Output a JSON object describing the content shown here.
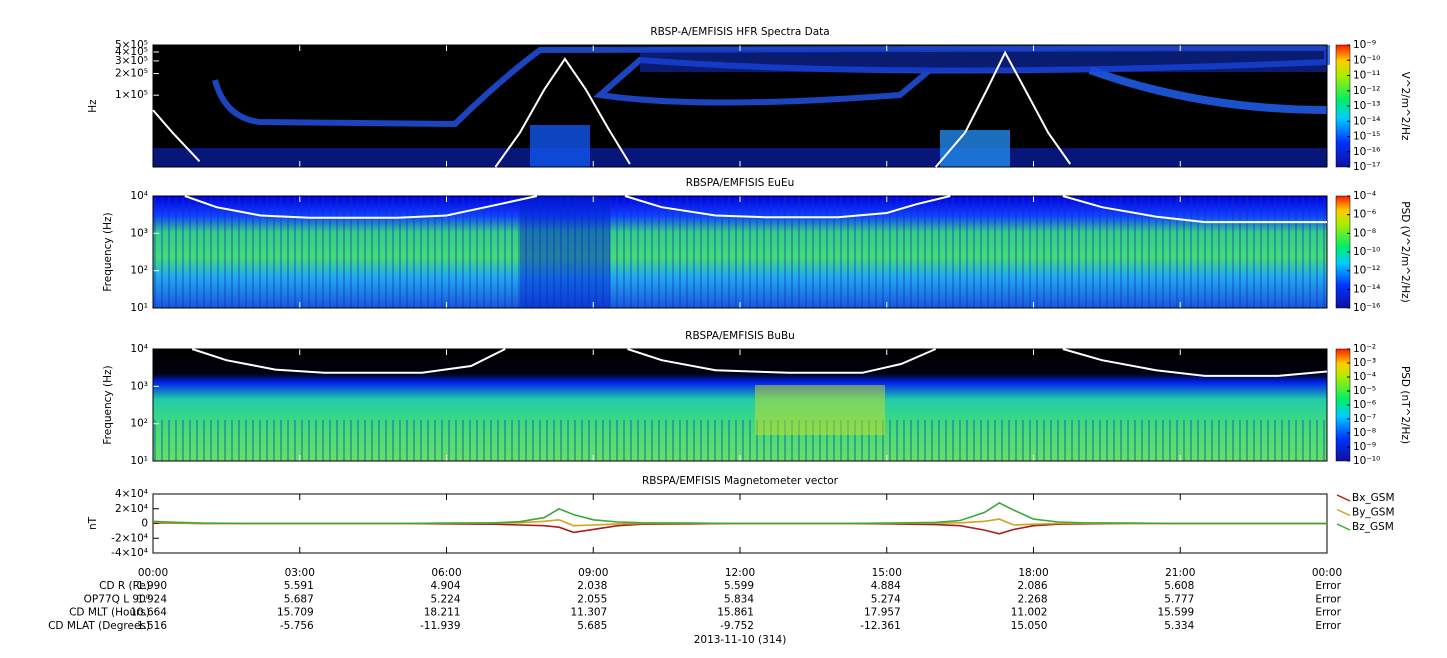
{
  "chart_data": [
    {
      "type": "spectrogram",
      "title": "RBSP-A/EMFISIS  HFR Spectra Data",
      "y_label": "Hz",
      "log_y": true,
      "xlim": [
        0,
        24
      ],
      "xticks": [
        0,
        3,
        6,
        9,
        12,
        15,
        18,
        21,
        24
      ],
      "ylim": [
        10000,
        500000
      ],
      "yticks": [
        {
          "value": 500000,
          "label": "5×10⁵"
        },
        {
          "value": 400000,
          "label": "4×10⁵"
        },
        {
          "value": 300000,
          "label": "3×10⁵"
        },
        {
          "value": 200000,
          "label": "2×10⁵"
        },
        {
          "value": 100000,
          "label": "1×10⁵"
        }
      ],
      "z_label": "V^2/m^2/Hz",
      "zlim": [
        1e-17,
        1e-09
      ],
      "zticks": [
        {
          "value": 1e-09,
          "label": "10⁻⁹"
        },
        {
          "value": 1e-10,
          "label": "10⁻¹⁰"
        },
        {
          "value": 1e-11,
          "label": "10⁻¹¹"
        },
        {
          "value": 1e-12,
          "label": "10⁻¹²"
        },
        {
          "value": 1e-13,
          "label": "10⁻¹³"
        },
        {
          "value": 1e-14,
          "label": "10⁻¹⁴"
        },
        {
          "value": 1e-15,
          "label": "10⁻¹⁵"
        },
        {
          "value": 1e-16,
          "label": "10⁻¹⁶"
        },
        {
          "value": 1e-17,
          "label": "10⁻¹⁷"
        }
      ],
      "overlay": {
        "color": "#ffffff",
        "x": [
          0,
          0.4,
          0.95,
          3,
          7.0,
          7.5,
          8.0,
          8.42,
          8.85,
          9.3,
          9.75,
          12,
          16.0,
          16.6,
          17.05,
          17.42,
          17.8,
          18.3,
          18.75
        ],
        "values": [
          62000,
          30000,
          12000,
          null,
          10000,
          30000,
          120000,
          320000,
          120000,
          35000,
          11000,
          null,
          10000,
          30000,
          120000,
          390000,
          130000,
          30000,
          11000
        ]
      }
    },
    {
      "type": "spectrogram",
      "title": "RBSPA/EMFISIS  EuEu",
      "y_label": "Frequency (Hz)",
      "log_y": true,
      "xlim": [
        0,
        24
      ],
      "xticks": [
        0,
        3,
        6,
        9,
        12,
        15,
        18,
        21,
        24
      ],
      "ylim": [
        10,
        10000
      ],
      "yticks": [
        {
          "value": 10000,
          "label": "10⁴"
        },
        {
          "value": 1000,
          "label": "10³"
        },
        {
          "value": 100,
          "label": "10²"
        },
        {
          "value": 10,
          "label": "10¹"
        }
      ],
      "z_label": "PSD (V^2/m^2/Hz)",
      "zlim": [
        1e-16,
        0.0001
      ],
      "zticks": [
        {
          "value": 0.0001,
          "label": "10⁻⁴"
        },
        {
          "value": 1e-06,
          "label": "10⁻⁶"
        },
        {
          "value": 1e-08,
          "label": "10⁻⁸"
        },
        {
          "value": 1e-10,
          "label": "10⁻¹⁰"
        },
        {
          "value": 1e-12,
          "label": "10⁻¹²"
        },
        {
          "value": 1e-14,
          "label": "10⁻¹⁴"
        },
        {
          "value": 1e-16,
          "label": "10⁻¹⁶"
        }
      ],
      "overlay": {
        "color": "#ffffff",
        "x": [
          0.65,
          1.3,
          2.2,
          3.2,
          5,
          6.0,
          6.8,
          7.85,
          8.5,
          9.65,
          10.4,
          11.5,
          12.5,
          14,
          15,
          15.6,
          16.3,
          17.5,
          18.6,
          19.4,
          20.5,
          21.5,
          24
        ],
        "values": [
          10000,
          5000,
          3000,
          2600,
          2600,
          3000,
          5000,
          10000,
          null,
          10000,
          5000,
          3000,
          2700,
          2700,
          3500,
          6000,
          10000,
          null,
          10000,
          5000,
          2800,
          2000,
          2000
        ]
      }
    },
    {
      "type": "spectrogram",
      "title": "RBSPA/EMFISIS  BuBu",
      "y_label": "Frequency (Hz)",
      "log_y": true,
      "xlim": [
        0,
        24
      ],
      "xticks": [
        0,
        3,
        6,
        9,
        12,
        15,
        18,
        21,
        24
      ],
      "ylim": [
        10,
        10000
      ],
      "yticks": [
        {
          "value": 10000,
          "label": "10⁴"
        },
        {
          "value": 1000,
          "label": "10³"
        },
        {
          "value": 100,
          "label": "10²"
        },
        {
          "value": 10,
          "label": "10¹"
        }
      ],
      "z_label": "PSD (nT^2/Hz)",
      "zlim": [
        1e-10,
        0.01
      ],
      "zticks": [
        {
          "value": 0.01,
          "label": "10⁻²"
        },
        {
          "value": 0.001,
          "label": "10⁻³"
        },
        {
          "value": 0.0001,
          "label": "10⁻⁴"
        },
        {
          "value": 1e-05,
          "label": "10⁻⁵"
        },
        {
          "value": 1e-06,
          "label": "10⁻⁶"
        },
        {
          "value": 1e-07,
          "label": "10⁻⁷"
        },
        {
          "value": 1e-08,
          "label": "10⁻⁸"
        },
        {
          "value": 1e-09,
          "label": "10⁻⁹"
        },
        {
          "value": 1e-10,
          "label": "10⁻¹⁰"
        }
      ],
      "overlay": {
        "color": "#ffffff",
        "x": [
          0.8,
          1.5,
          2.5,
          3.5,
          5.5,
          6.5,
          7.2,
          8,
          9.7,
          10.4,
          11.5,
          13,
          14.5,
          15.3,
          16.0,
          17,
          18.6,
          19.4,
          20.5,
          21.5,
          23,
          24
        ],
        "values": [
          10000,
          5000,
          2800,
          2300,
          2300,
          3500,
          10000,
          null,
          10000,
          5000,
          2700,
          2300,
          2300,
          4000,
          10000,
          null,
          10000,
          5000,
          2700,
          1900,
          1900,
          2500
        ]
      }
    },
    {
      "type": "line",
      "title": "RBSPA/EMFISIS  Magnetometer vector",
      "y_label": "nT",
      "x_label": "2013-11-10 (314)",
      "xlim": [
        0,
        24
      ],
      "xticks": [
        {
          "value": 0,
          "label": "00:00"
        },
        {
          "value": 3,
          "label": "03:00"
        },
        {
          "value": 6,
          "label": "06:00"
        },
        {
          "value": 9,
          "label": "09:00"
        },
        {
          "value": 12,
          "label": "12:00"
        },
        {
          "value": 15,
          "label": "15:00"
        },
        {
          "value": 18,
          "label": "18:00"
        },
        {
          "value": 21,
          "label": "21:00"
        },
        {
          "value": 24,
          "label": "00:00"
        }
      ],
      "ylim": [
        -40000,
        40000
      ],
      "yticks": [
        {
          "value": 40000,
          "label": "4×10⁴"
        },
        {
          "value": 20000,
          "label": "2×10⁴"
        },
        0,
        {
          "value": -20000,
          "label": "-2×10⁴"
        },
        {
          "value": -40000,
          "label": "-4×10⁴"
        }
      ],
      "x": [
        0,
        0.3,
        1,
        2,
        3,
        4,
        5,
        6,
        7,
        7.5,
        8,
        8.3,
        8.6,
        9,
        9.5,
        10,
        11,
        12,
        13,
        14,
        15,
        16,
        16.5,
        17,
        17.3,
        17.6,
        18,
        18.5,
        19,
        20,
        21,
        22,
        23,
        24
      ],
      "series": [
        {
          "name": "Bx_GSM",
          "color": "#a52020",
          "values": [
            1000,
            500,
            0,
            0,
            0,
            0,
            0,
            -500,
            -1000,
            -2000,
            -3000,
            -5000,
            -12000,
            -8000,
            -3000,
            -1000,
            -500,
            0,
            0,
            0,
            -500,
            -1500,
            -3000,
            -9000,
            -14000,
            -8000,
            -3000,
            -1000,
            -500,
            0,
            0,
            0,
            0,
            0
          ]
        },
        {
          "name": "By_GSM",
          "color": "#d4a020",
          "values": [
            2000,
            1000,
            0,
            0,
            0,
            0,
            0,
            0,
            500,
            1000,
            3000,
            5000,
            -3000,
            -2000,
            -500,
            0,
            0,
            0,
            0,
            0,
            0,
            500,
            1000,
            3000,
            6000,
            -2000,
            -1000,
            0,
            0,
            0,
            0,
            0,
            0,
            0
          ]
        },
        {
          "name": "Bz_GSM",
          "color": "#3aa83a",
          "values": [
            3000,
            2000,
            500,
            0,
            0,
            0,
            0,
            500,
            1000,
            2500,
            8000,
            20000,
            12000,
            5000,
            2000,
            1000,
            500,
            0,
            0,
            0,
            500,
            1500,
            4000,
            15000,
            28000,
            18000,
            6000,
            2000,
            1000,
            500,
            0,
            0,
            0,
            0
          ]
        }
      ]
    }
  ],
  "ephemeris": {
    "rows": [
      {
        "label": "CD R (Re)",
        "values": [
          "1.990",
          "5.591",
          "4.904",
          "2.038",
          "5.599",
          "4.884",
          "2.086",
          "5.608",
          "Error"
        ]
      },
      {
        "label": "OP77Q L 90⁰",
        "values": [
          "1.924",
          "5.687",
          "5.224",
          "2.055",
          "5.834",
          "5.274",
          "2.268",
          "5.777",
          "Error"
        ]
      },
      {
        "label": "CD MLT (Hours)",
        "values": [
          "10.664",
          "15.709",
          "18.211",
          "11.307",
          "15.861",
          "17.957",
          "11.002",
          "15.599",
          "Error"
        ]
      },
      {
        "label": "CD MLAT (Degrees)",
        "values": [
          "1.516",
          "-5.756",
          "-11.939",
          "5.685",
          "-9.752",
          "-12.361",
          "15.050",
          "5.334",
          "Error"
        ]
      }
    ]
  }
}
